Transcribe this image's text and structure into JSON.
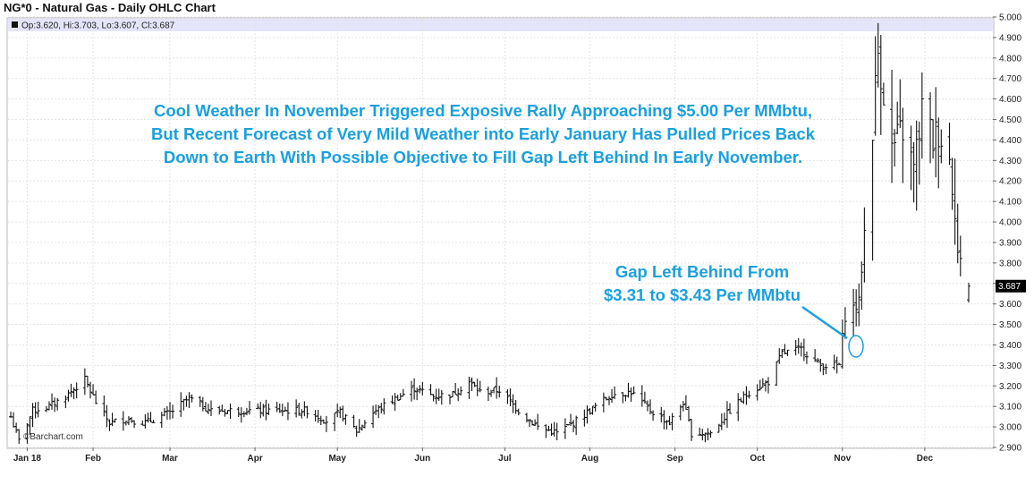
{
  "header": {
    "title": "NG*0 - Natural Gas - Daily OHLC Chart",
    "ohlc_readout": "Op:3.620, Hi:3.703, Lo:3.607, Cl:3.687"
  },
  "watermark": "©Barchart.com",
  "annotations": {
    "main": [
      "Cool Weather In November Triggered Exposive Rally Approaching $5.00 Per MMbtu,",
      "But Recent Forecast of Very Mild Weather into Early January Has Pulled Prices Back",
      "Down to Earth With Possible Objective to Fill Gap Left Behind In Early November."
    ],
    "gap": [
      "Gap Left Behind From",
      "$3.31 to $3.43 Per MMbtu"
    ]
  },
  "colors": {
    "annotation": "#1aa0dc",
    "bars": "#111111",
    "header_band": "#e4e4fa",
    "last_price_box": "#000000"
  },
  "chart_data": {
    "type": "ohlc",
    "title": "NG*0 - Natural Gas - Daily OHLC Chart",
    "x_tick_labels": [
      "Jan 18",
      "Feb",
      "Mar",
      "Apr",
      "May",
      "Jun",
      "Jul",
      "Aug",
      "Sep",
      "Oct",
      "Nov",
      "Dec"
    ],
    "y_tick_labels": [
      "5.000",
      "4.900",
      "4.800",
      "4.700",
      "4.600",
      "4.500",
      "4.400",
      "4.300",
      "4.200",
      "4.100",
      "4.000",
      "3.900",
      "3.800",
      "3.700",
      "3.600",
      "3.500",
      "3.400",
      "3.300",
      "3.200",
      "3.100",
      "3.000",
      "2.900"
    ],
    "y_ticks": [
      5.0,
      4.9,
      4.8,
      4.7,
      4.6,
      4.5,
      4.4,
      4.3,
      4.2,
      4.1,
      4.0,
      3.9,
      3.8,
      3.7,
      3.6,
      3.5,
      3.4,
      3.3,
      3.2,
      3.1,
      3.0,
      2.9
    ],
    "ylim": [
      2.9,
      5.0
    ],
    "last_price": 3.687,
    "last_price_label": "3.687",
    "gap_range": [
      3.31,
      3.43
    ],
    "series_anchors": [
      [
        "2018-01-02",
        3.05
      ],
      [
        "2018-01-05",
        2.93
      ],
      [
        "2018-01-10",
        3.08
      ],
      [
        "2018-01-16",
        3.1
      ],
      [
        "2018-01-22",
        3.15
      ],
      [
        "2018-01-29",
        3.23
      ],
      [
        "2018-02-02",
        3.12
      ],
      [
        "2018-02-07",
        3.02
      ],
      [
        "2018-02-13",
        3.04
      ],
      [
        "2018-02-20",
        3.02
      ],
      [
        "2018-03-01",
        3.07
      ],
      [
        "2018-03-08",
        3.14
      ],
      [
        "2018-03-16",
        3.08
      ],
      [
        "2018-03-26",
        3.08
      ],
      [
        "2018-04-03",
        3.08
      ],
      [
        "2018-04-12",
        3.08
      ],
      [
        "2018-04-20",
        3.08
      ],
      [
        "2018-04-27",
        3.03
      ],
      [
        "2018-05-02",
        3.07
      ],
      [
        "2018-05-08",
        2.98
      ],
      [
        "2018-05-14",
        3.07
      ],
      [
        "2018-05-21",
        3.13
      ],
      [
        "2018-05-29",
        3.19
      ],
      [
        "2018-06-05",
        3.15
      ],
      [
        "2018-06-12",
        3.16
      ],
      [
        "2018-06-18",
        3.22
      ],
      [
        "2018-06-22",
        3.17
      ],
      [
        "2018-06-29",
        3.18
      ],
      [
        "2018-07-06",
        3.08
      ],
      [
        "2018-07-13",
        3.0
      ],
      [
        "2018-07-20",
        2.97
      ],
      [
        "2018-07-26",
        3.02
      ],
      [
        "2018-08-02",
        3.09
      ],
      [
        "2018-08-09",
        3.16
      ],
      [
        "2018-08-16",
        3.17
      ],
      [
        "2018-08-23",
        3.08
      ],
      [
        "2018-08-30",
        3.02
      ],
      [
        "2018-09-04",
        3.12
      ],
      [
        "2018-09-07",
        2.97
      ],
      [
        "2018-09-14",
        2.97
      ],
      [
        "2018-09-21",
        3.08
      ],
      [
        "2018-09-28",
        3.17
      ],
      [
        "2018-10-05",
        3.22
      ],
      [
        "2018-10-10",
        3.36
      ],
      [
        "2018-10-17",
        3.38
      ],
      [
        "2018-10-24",
        3.3
      ],
      [
        "2018-10-31",
        3.3
      ],
      [
        "2018-11-02",
        3.55
      ],
      [
        "2018-11-07",
        3.6
      ],
      [
        "2018-11-09",
        3.95
      ],
      [
        "2018-11-14",
        4.83
      ],
      [
        "2018-11-19",
        4.35
      ],
      [
        "2018-11-23",
        4.45
      ],
      [
        "2018-11-27",
        4.25
      ],
      [
        "2018-11-30",
        4.55
      ],
      [
        "2018-12-04",
        4.4
      ],
      [
        "2018-12-06",
        4.45
      ],
      [
        "2018-12-10",
        4.3
      ],
      [
        "2018-12-12",
        4.1
      ],
      [
        "2018-12-13",
        3.85
      ],
      [
        "2018-12-17",
        3.66
      ]
    ]
  }
}
